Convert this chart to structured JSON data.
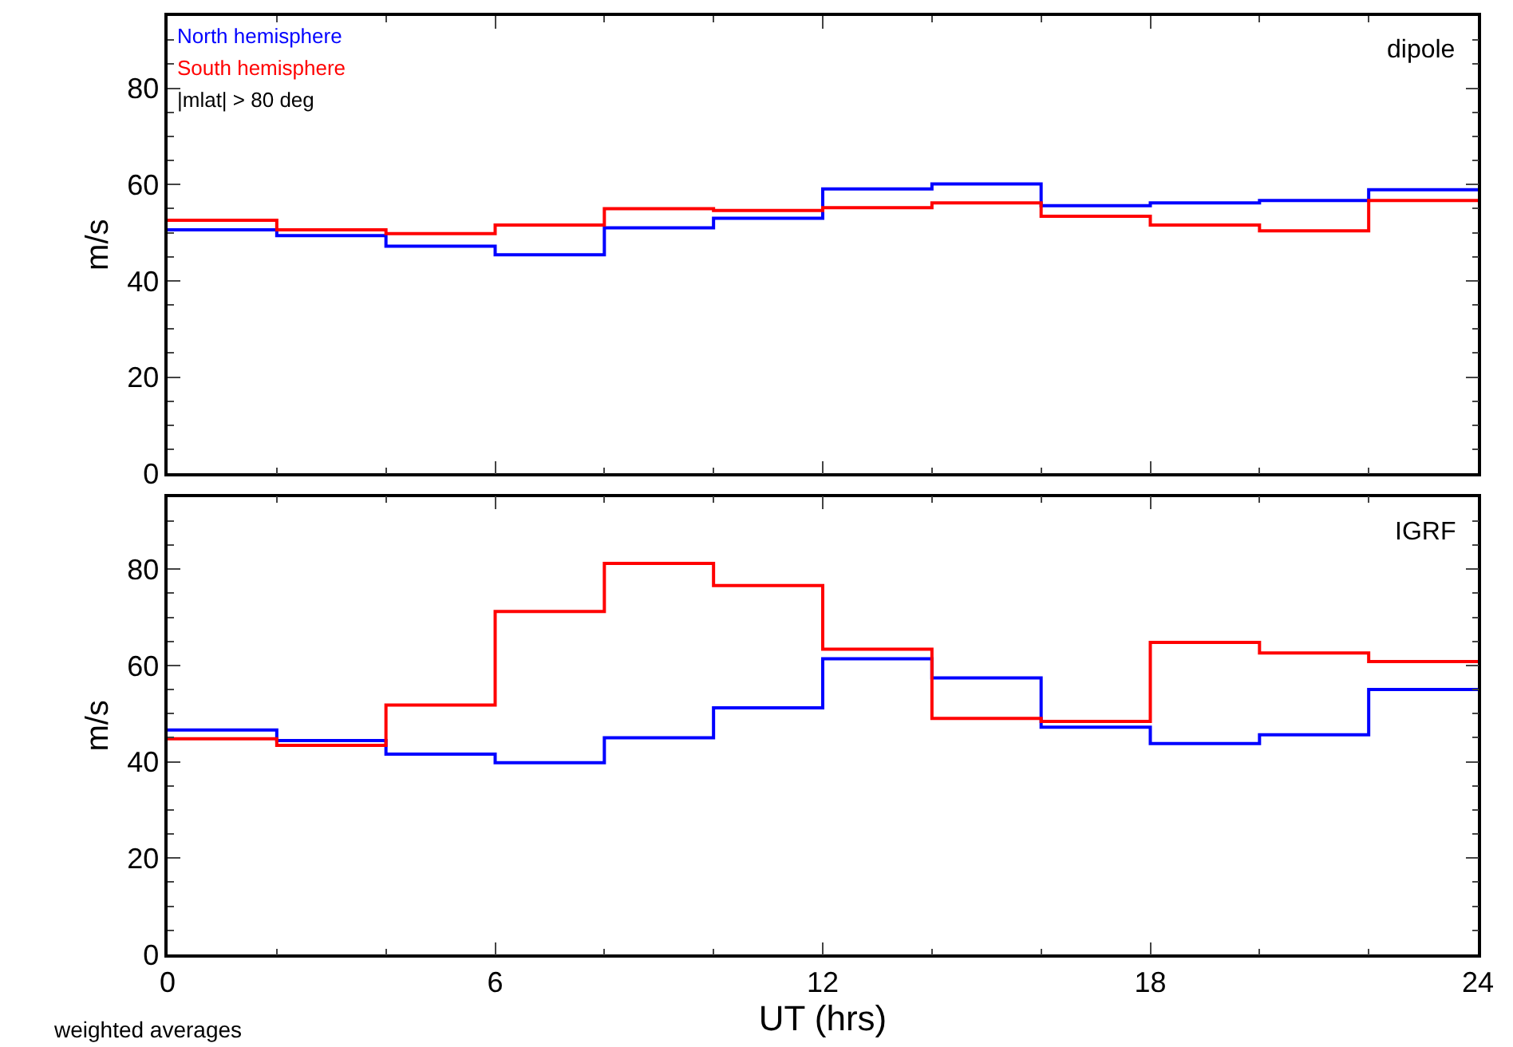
{
  "chart_data": [
    {
      "type": "step",
      "ylabel": "m/s",
      "x": [
        0,
        2,
        4,
        6,
        8,
        10,
        12,
        14,
        16,
        18,
        20,
        22,
        24
      ],
      "xlim": [
        0,
        24
      ],
      "xticks": [
        0,
        6,
        12,
        18,
        24
      ],
      "ylim": [
        0,
        95
      ],
      "yticks": [
        0,
        20,
        40,
        60,
        80
      ],
      "tick_labels": "y",
      "legend": "top left",
      "grid": false,
      "annotations": [
        "dipole",
        "|mlat| > 80 deg"
      ],
      "series": [
        {
          "name": "North hemisphere",
          "color": "#0000ff",
          "values": [
            50.6,
            49.4,
            47.2,
            45.4,
            51,
            53,
            59.1,
            60.1,
            55.6,
            56.2,
            56.7,
            58.9,
            58.9
          ]
        },
        {
          "name": "South hemisphere",
          "color": "#ff0000",
          "values": [
            52.6,
            50.6,
            49.8,
            51.6,
            55,
            54.6,
            55.2,
            56.2,
            53.4,
            51.6,
            50.4,
            56.7,
            56.7
          ]
        }
      ]
    },
    {
      "type": "step",
      "ylabel": "m/s",
      "xlabel": "UT (hrs)",
      "x": [
        0,
        2,
        4,
        6,
        8,
        10,
        12,
        14,
        16,
        18,
        20,
        22,
        24
      ],
      "xlim": [
        0,
        24
      ],
      "xticks": [
        0,
        6,
        12,
        18,
        24
      ],
      "ylim": [
        0,
        95
      ],
      "yticks": [
        0,
        20,
        40,
        60,
        80
      ],
      "grid": false,
      "annotations": [
        "IGRF",
        "weighted averages"
      ],
      "series": [
        {
          "color": "#0000ff",
          "values": [
            46.6,
            44.4,
            41.6,
            39.8,
            45,
            51.2,
            61.4,
            57.4,
            47.2,
            43.8,
            45.6,
            55,
            55
          ]
        },
        {
          "color": "#ff0000",
          "values": [
            44.8,
            43.4,
            51.8,
            71.2,
            81.2,
            76.6,
            63.4,
            49,
            48.4,
            64.8,
            62.6,
            60.8,
            60.8
          ]
        }
      ]
    }
  ]
}
